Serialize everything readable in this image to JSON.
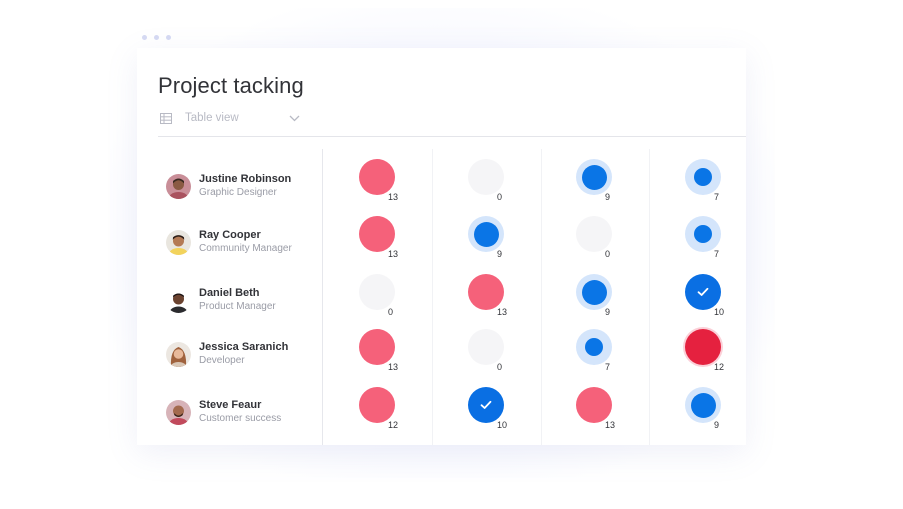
{
  "title": "Project tacking",
  "view": {
    "label": "Table view",
    "icon": "table-icon",
    "dropdown_icon": "chevron-down-icon"
  },
  "colors": {
    "pink": "#f5617a",
    "red": "#e5213f",
    "blue": "#0a75e6",
    "empty": "#f5f5f7",
    "text": "#323338",
    "muted": "#9a9ca6"
  },
  "people": [
    {
      "name": "Justine Robinson",
      "role": "Graphic Designer",
      "cells": [
        {
          "status": "pink",
          "count": "13"
        },
        {
          "status": "empty",
          "count": "0"
        },
        {
          "status": "blue-large",
          "count": "9"
        },
        {
          "status": "blue-small",
          "count": "7"
        }
      ]
    },
    {
      "name": "Ray Cooper",
      "role": "Community Manager",
      "cells": [
        {
          "status": "pink",
          "count": "13"
        },
        {
          "status": "blue-large",
          "count": "9"
        },
        {
          "status": "empty",
          "count": "0"
        },
        {
          "status": "blue-small",
          "count": "7"
        }
      ]
    },
    {
      "name": "Daniel Beth",
      "role": "Product Manager",
      "cells": [
        {
          "status": "empty",
          "count": "0"
        },
        {
          "status": "pink",
          "count": "13"
        },
        {
          "status": "blue-large",
          "count": "9"
        },
        {
          "status": "done",
          "count": "10"
        }
      ]
    },
    {
      "name": "Jessica Saranich",
      "role": "Developer",
      "cells": [
        {
          "status": "pink",
          "count": "13"
        },
        {
          "status": "empty",
          "count": "0"
        },
        {
          "status": "blue-small",
          "count": "7"
        },
        {
          "status": "red",
          "count": "12"
        }
      ]
    },
    {
      "name": "Steve Feaur",
      "role": "Customer success",
      "cells": [
        {
          "status": "pink",
          "count": "12"
        },
        {
          "status": "done",
          "count": "10"
        },
        {
          "status": "pink",
          "count": "13"
        },
        {
          "status": "blue-large",
          "count": "9"
        }
      ]
    }
  ]
}
